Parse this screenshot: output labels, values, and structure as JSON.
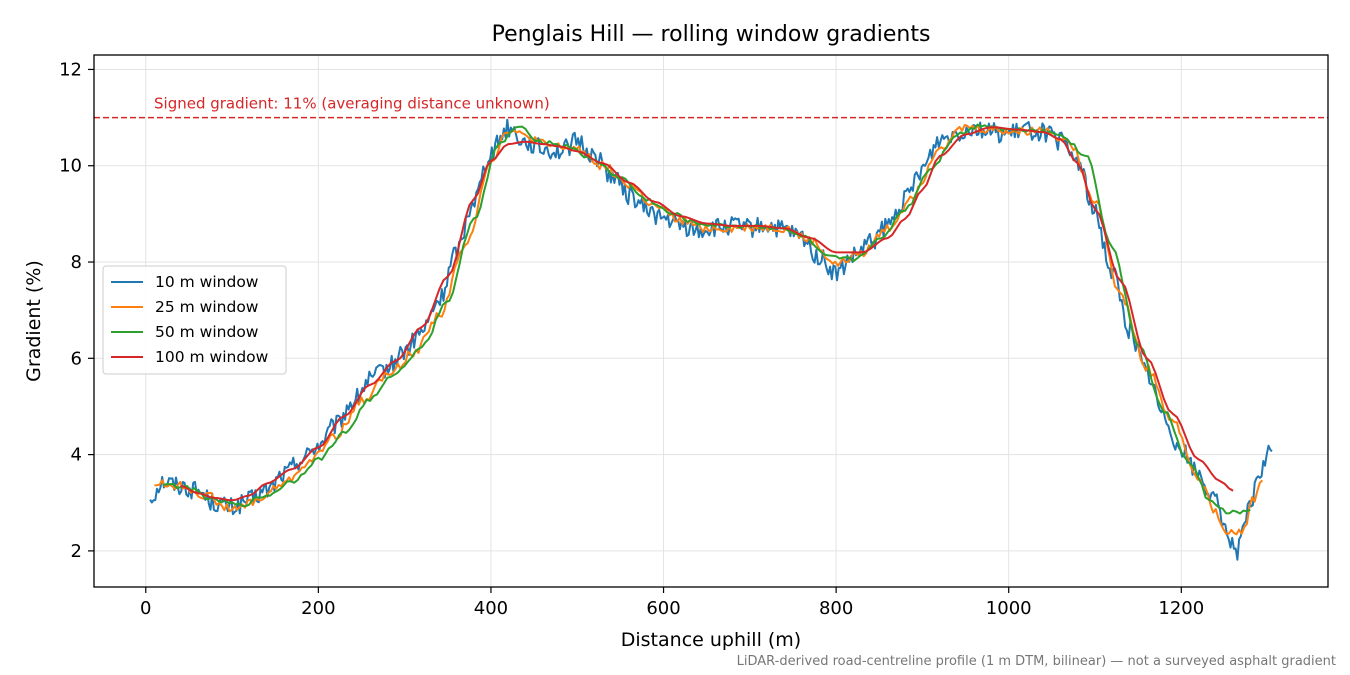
{
  "chart_data": {
    "type": "line",
    "title": "Penglais Hill — rolling window gradients",
    "xlabel": "Distance uphill (m)",
    "ylabel": "Gradient (%)",
    "xlim": [
      -60,
      1370
    ],
    "ylim": [
      1.25,
      12.3
    ],
    "xticks": [
      0,
      200,
      400,
      600,
      800,
      1000,
      1200
    ],
    "yticks": [
      2,
      4,
      6,
      8,
      10,
      12
    ],
    "grid": true,
    "legend_position": "center-left",
    "reference_line": {
      "y": 11,
      "label": "Signed gradient: 11% (averaging distance unknown)",
      "color": "#d62728",
      "style": "dashed"
    },
    "footnote": "LiDAR-derived road-centreline profile (1 m DTM, bilinear) — not a surveyed asphalt gradient",
    "series": [
      {
        "name": "10 m window",
        "color": "#1f77b4",
        "x": [
          5,
          20,
          40,
          60,
          80,
          100,
          120,
          140,
          160,
          180,
          200,
          220,
          240,
          260,
          280,
          300,
          320,
          340,
          360,
          380,
          400,
          420,
          440,
          460,
          480,
          500,
          520,
          540,
          560,
          580,
          600,
          620,
          640,
          660,
          680,
          700,
          720,
          740,
          760,
          780,
          800,
          820,
          840,
          860,
          880,
          900,
          920,
          940,
          960,
          980,
          1000,
          1020,
          1040,
          1060,
          1080,
          1100,
          1120,
          1140,
          1160,
          1180,
          1200,
          1220,
          1240,
          1255,
          1265,
          1280,
          1290,
          1305
        ],
        "y": [
          3.1,
          3.45,
          3.35,
          3.25,
          3.0,
          2.9,
          3.05,
          3.25,
          3.6,
          3.9,
          4.2,
          4.6,
          5.1,
          5.55,
          5.8,
          6.15,
          6.55,
          7.2,
          8.2,
          9.3,
          10.3,
          10.8,
          10.5,
          10.35,
          10.3,
          10.5,
          10.2,
          9.8,
          9.4,
          9.1,
          8.9,
          8.75,
          8.65,
          8.7,
          8.75,
          8.7,
          8.75,
          8.65,
          8.5,
          8.1,
          7.75,
          8.1,
          8.4,
          8.75,
          9.3,
          9.95,
          10.55,
          10.7,
          10.8,
          10.7,
          10.65,
          10.75,
          10.7,
          10.5,
          10.1,
          9.0,
          7.8,
          6.6,
          5.7,
          4.8,
          4.1,
          3.6,
          3.0,
          2.3,
          2.0,
          2.9,
          3.6,
          4.1
        ]
      },
      {
        "name": "25 m window",
        "color": "#ff7f0e",
        "x": [
          10,
          40,
          70,
          100,
          130,
          160,
          190,
          220,
          250,
          280,
          310,
          340,
          370,
          400,
          420,
          440,
          470,
          500,
          530,
          560,
          590,
          620,
          650,
          680,
          710,
          740,
          770,
          800,
          830,
          860,
          890,
          920,
          950,
          980,
          1010,
          1040,
          1070,
          1100,
          1130,
          1160,
          1190,
          1220,
          1240,
          1255,
          1270,
          1285,
          1295
        ],
        "y": [
          3.4,
          3.35,
          3.15,
          2.85,
          3.05,
          3.4,
          3.85,
          4.4,
          5.1,
          5.65,
          6.1,
          6.9,
          8.3,
          10.1,
          10.75,
          10.6,
          10.4,
          10.35,
          10.0,
          9.6,
          9.15,
          8.85,
          8.7,
          8.7,
          8.72,
          8.7,
          8.45,
          7.95,
          8.2,
          8.7,
          9.4,
          10.4,
          10.8,
          10.75,
          10.7,
          10.75,
          10.5,
          9.3,
          7.3,
          5.8,
          4.7,
          3.5,
          2.8,
          2.35,
          2.4,
          3.1,
          3.5
        ]
      },
      {
        "name": "50 m window",
        "color": "#2ca02c",
        "x": [
          20,
          50,
          80,
          110,
          140,
          170,
          200,
          230,
          260,
          290,
          320,
          350,
          380,
          410,
          430,
          460,
          490,
          520,
          550,
          580,
          610,
          640,
          670,
          700,
          730,
          760,
          790,
          820,
          850,
          880,
          910,
          940,
          970,
          1000,
          1030,
          1060,
          1090,
          1120,
          1150,
          1180,
          1210,
          1235,
          1255,
          1270,
          1280
        ],
        "y": [
          3.4,
          3.3,
          3.05,
          2.95,
          3.15,
          3.45,
          3.9,
          4.45,
          5.15,
          5.7,
          6.25,
          7.2,
          8.9,
          10.45,
          10.8,
          10.5,
          10.4,
          10.1,
          9.75,
          9.3,
          9.0,
          8.8,
          8.75,
          8.75,
          8.72,
          8.55,
          8.1,
          8.05,
          8.45,
          9.1,
          9.95,
          10.65,
          10.85,
          10.75,
          10.75,
          10.65,
          10.2,
          8.3,
          6.3,
          4.9,
          3.8,
          3.0,
          2.8,
          2.8,
          2.85
        ]
      },
      {
        "name": "100 m window",
        "color": "#d62728",
        "x": [
          40,
          60,
          80,
          100,
          120,
          140,
          170,
          200,
          230,
          260,
          290,
          320,
          350,
          380,
          400,
          420,
          440,
          460,
          480,
          500,
          530,
          560,
          590,
          620,
          650,
          680,
          710,
          740,
          770,
          800,
          830,
          860,
          880,
          900,
          920,
          950,
          980,
          1010,
          1040,
          1060,
          1080,
          1100,
          1130,
          1160,
          1190,
          1220,
          1245,
          1260
        ],
        "y": [
          3.35,
          3.2,
          3.1,
          3.05,
          3.15,
          3.4,
          3.7,
          4.15,
          4.8,
          5.45,
          5.95,
          6.65,
          7.7,
          9.3,
          10.1,
          10.45,
          10.5,
          10.45,
          10.4,
          10.3,
          10.05,
          9.65,
          9.25,
          8.95,
          8.8,
          8.75,
          8.75,
          8.7,
          8.5,
          8.2,
          8.2,
          8.5,
          8.9,
          9.5,
          10.2,
          10.65,
          10.8,
          10.75,
          10.7,
          10.55,
          10.05,
          9.1,
          7.6,
          6.0,
          4.85,
          3.9,
          3.45,
          3.25
        ]
      }
    ]
  }
}
